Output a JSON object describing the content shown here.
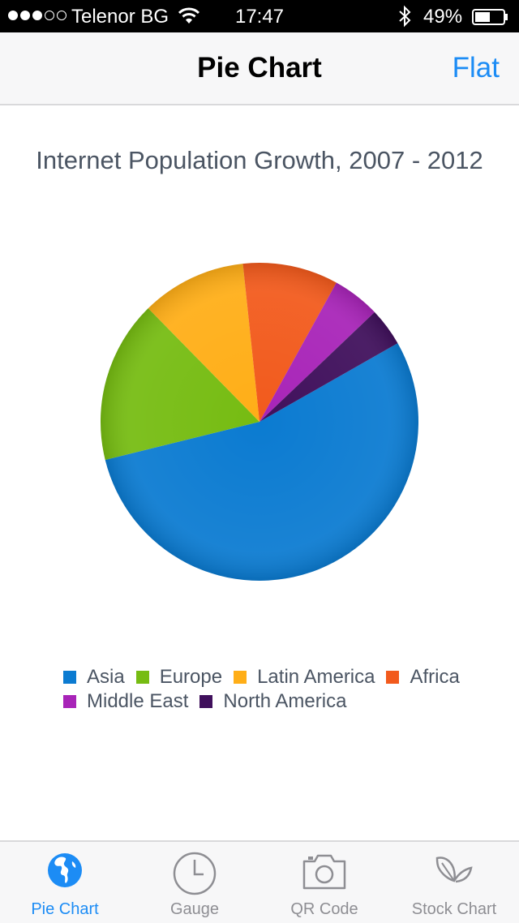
{
  "status_bar": {
    "carrier": "Telenor BG",
    "time": "17:47",
    "battery": "49%",
    "signal_bars": 3,
    "signal_total": 5
  },
  "nav": {
    "title": "Pie Chart",
    "action": "Flat"
  },
  "chart_data": {
    "type": "pie",
    "title": "Internet Population Growth, 2007 - 2012",
    "categories": [
      "Asia",
      "Europe",
      "Latin America",
      "Africa",
      "Middle East",
      "North America"
    ],
    "values": [
      56,
      17,
      11,
      10,
      5,
      4
    ],
    "colors": [
      "#0b7bd1",
      "#76bc12",
      "#ffae17",
      "#f25a1c",
      "#a824b8",
      "#40105c"
    ],
    "legend_position": "bottom"
  },
  "tabs": [
    {
      "label": "Pie Chart",
      "icon": "globe-icon",
      "active": true
    },
    {
      "label": "Gauge",
      "icon": "clock-icon",
      "active": false
    },
    {
      "label": "QR Code",
      "icon": "camera-icon",
      "active": false
    },
    {
      "label": "Stock Chart",
      "icon": "leaf-icon",
      "active": false
    }
  ],
  "colors": {
    "accent": "#1c8cf5",
    "inactive": "#8e8e93",
    "text": "#4b5563"
  }
}
